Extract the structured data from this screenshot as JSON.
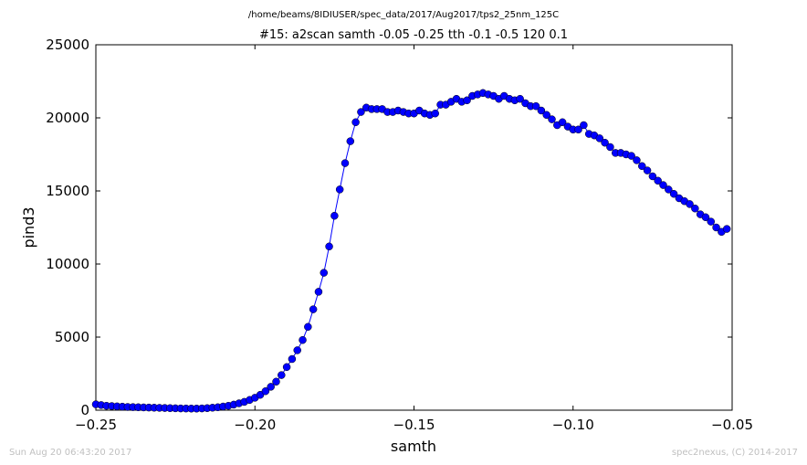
{
  "figure": {
    "suptitle": "/home/beams/8IDIUSER/spec_data/2017/Aug2017/tps2_25nm_125C",
    "footer_left": "Sun Aug 20 06:43:20 2017",
    "footer_right": "spec2nexus, (C) 2014-2017"
  },
  "chart_data": {
    "type": "line",
    "title": "#15: a2scan  samth -0.05 -0.25  tth -0.1 -0.5  120 0.1",
    "xlabel": "samth",
    "ylabel": "pind3",
    "xlim": [
      -0.25,
      -0.05
    ],
    "ylim": [
      0,
      25000
    ],
    "xticks": [
      -0.25,
      -0.2,
      -0.15,
      -0.1,
      -0.05
    ],
    "xtick_labels": [
      "−0.25",
      "−0.20",
      "−0.15",
      "−0.10",
      "−0.05"
    ],
    "yticks": [
      0,
      5000,
      10000,
      15000,
      20000,
      25000
    ],
    "ytick_labels": [
      "0",
      "5000",
      "10000",
      "15000",
      "20000",
      "25000"
    ],
    "grid": false,
    "line_color": "#0000ff",
    "marker": "circle",
    "series": [
      {
        "x_start": -0.25,
        "x_step": 0.00166667,
        "y": [
          400,
          350,
          300,
          280,
          260,
          240,
          220,
          210,
          200,
          190,
          180,
          170,
          160,
          150,
          140,
          130,
          120,
          115,
          110,
          110,
          120,
          140,
          170,
          200,
          250,
          300,
          380,
          470,
          570,
          700,
          850,
          1050,
          1300,
          1600,
          1950,
          2400,
          2950,
          3500,
          4100,
          4800,
          5700,
          6900,
          8100,
          9400,
          11200,
          13300,
          15100,
          16900,
          18400,
          19700,
          20400,
          20700,
          20600,
          20600,
          20600,
          20400,
          20400,
          20500,
          20400,
          20300,
          20300,
          20500,
          20300,
          20200,
          20300,
          20900,
          20900,
          21100,
          21300,
          21100,
          21200,
          21500,
          21600,
          21700,
          21600,
          21500,
          21300,
          21500,
          21300,
          21200,
          21300,
          21000,
          20800,
          20800,
          20500,
          20200,
          19900,
          19500,
          19700,
          19400,
          19200,
          19200,
          19500,
          18900,
          18800,
          18600,
          18300,
          18000,
          17600,
          17600,
          17500,
          17400,
          17100,
          16700,
          16400,
          16000,
          15700,
          15400,
          15100,
          14800,
          14500,
          14300,
          14100,
          13800,
          13400,
          13200,
          12900,
          12500,
          12200,
          12400
        ]
      }
    ]
  }
}
